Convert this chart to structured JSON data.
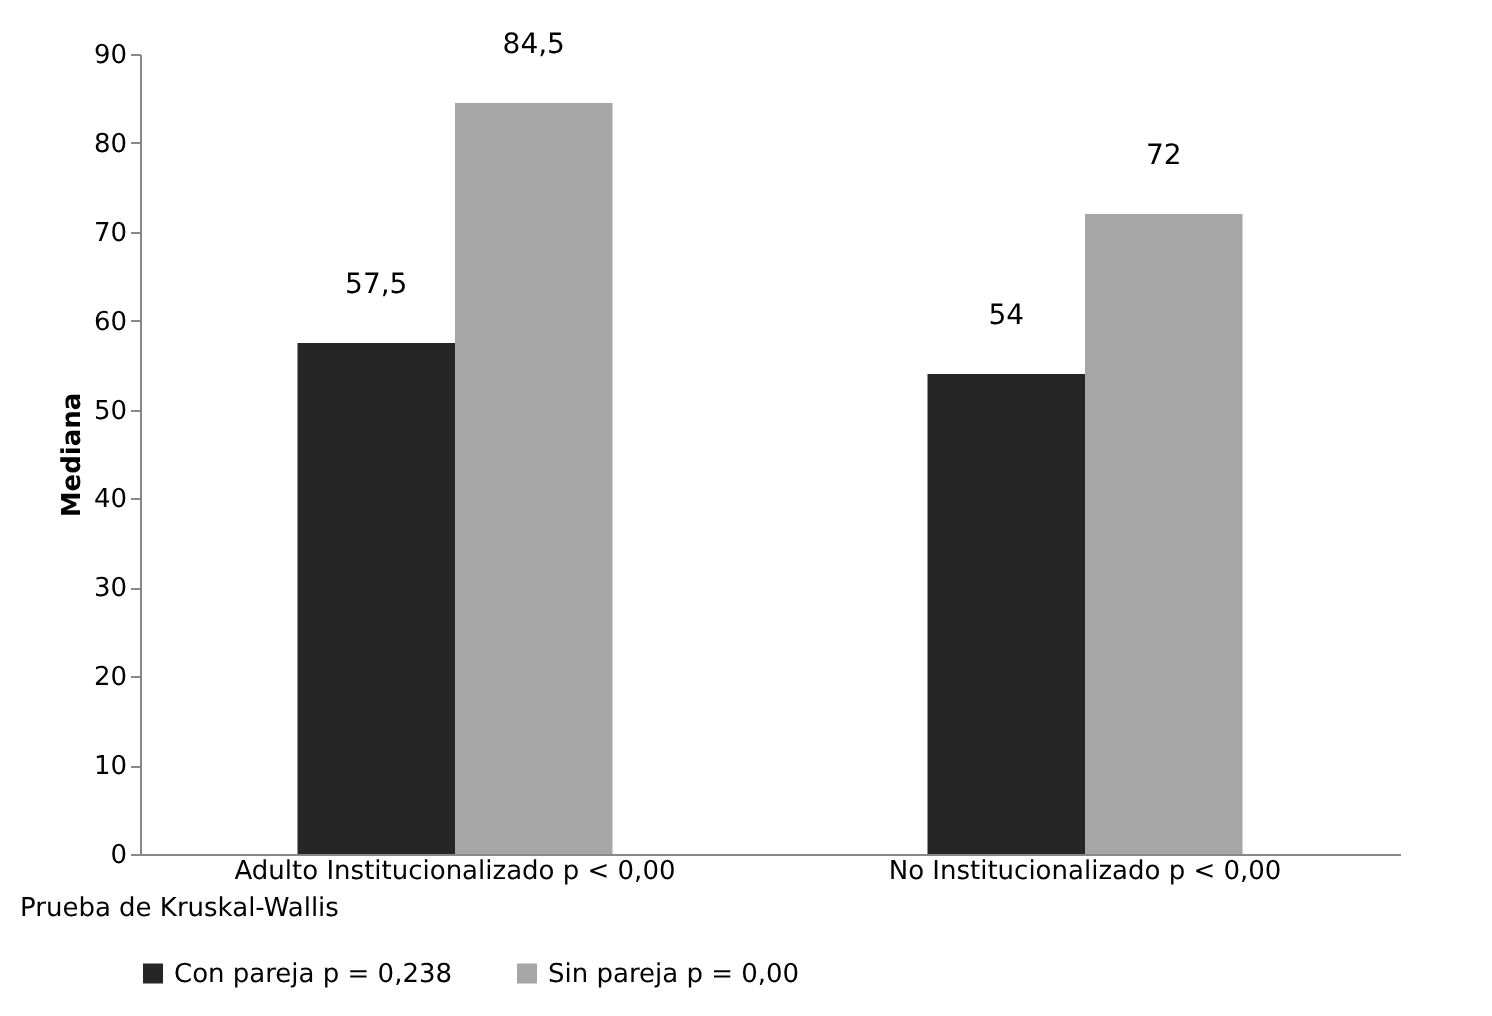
{
  "chart_data": {
    "type": "bar",
    "ylabel": "Mediana",
    "categories": [
      "Adulto Institucionalizado p < 0,00",
      "No Institucionalizado p < 0,00"
    ],
    "series": [
      {
        "name": "Con pareja p = 0,238",
        "color": "#262626",
        "values": [
          57.5,
          54
        ],
        "value_labels": [
          "57,5",
          "54"
        ]
      },
      {
        "name": "Sin pareja p = 0,00",
        "color": "#a6a6a6",
        "values": [
          84.5,
          72
        ],
        "value_labels": [
          "84,5",
          "72"
        ]
      }
    ],
    "ylim": [
      0,
      90
    ],
    "yticks": [
      0,
      10,
      20,
      30,
      40,
      50,
      60,
      70,
      80,
      90
    ],
    "grid": false,
    "legend": "bottom",
    "annotations": [
      "Prueba de Kruskal-Wallis"
    ]
  }
}
